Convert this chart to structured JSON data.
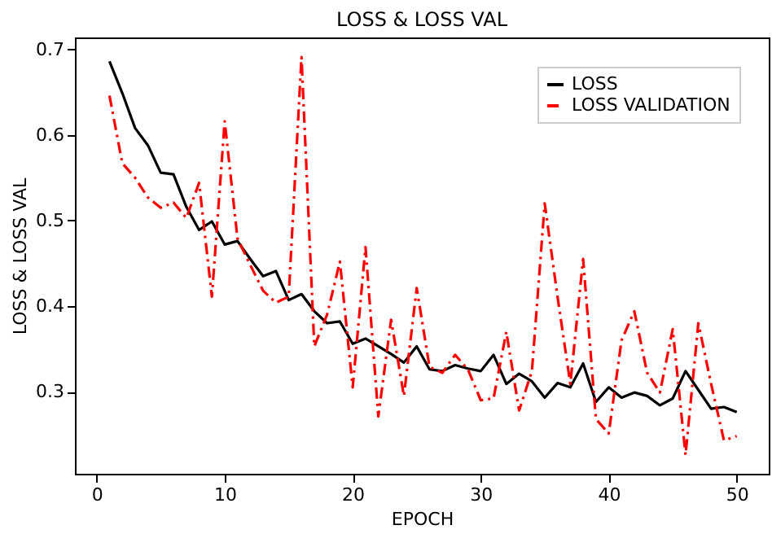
{
  "chart_data": {
    "type": "line",
    "title": "LOSS & LOSS VAL",
    "xlabel": "EPOCH",
    "ylabel": "LOSS & LOSS VAL",
    "x": [
      1,
      2,
      3,
      4,
      5,
      6,
      7,
      8,
      9,
      10,
      11,
      12,
      13,
      14,
      15,
      16,
      17,
      18,
      19,
      20,
      21,
      22,
      23,
      24,
      25,
      26,
      27,
      28,
      29,
      30,
      31,
      32,
      33,
      34,
      35,
      36,
      37,
      38,
      39,
      40,
      41,
      42,
      43,
      44,
      45,
      46,
      47,
      48,
      49,
      50
    ],
    "series": [
      {
        "name": "LOSS",
        "color": "#000000",
        "line_style": "solid",
        "values": [
          0.686,
          0.649,
          0.608,
          0.588,
          0.556,
          0.554,
          0.516,
          0.489,
          0.499,
          0.472,
          0.476,
          0.455,
          0.435,
          0.441,
          0.407,
          0.414,
          0.394,
          0.38,
          0.382,
          0.356,
          0.362,
          0.353,
          0.344,
          0.334,
          0.353,
          0.326,
          0.324,
          0.331,
          0.327,
          0.324,
          0.343,
          0.309,
          0.321,
          0.312,
          0.293,
          0.31,
          0.305,
          0.333,
          0.288,
          0.305,
          0.293,
          0.299,
          0.295,
          0.284,
          0.292,
          0.324,
          0.302,
          0.28,
          0.282,
          0.276
        ]
      },
      {
        "name": "LOSS VALIDATION",
        "color": "#ff0000",
        "line_style": "dashed",
        "values": [
          0.646,
          0.567,
          0.55,
          0.527,
          0.515,
          0.521,
          0.503,
          0.544,
          0.411,
          0.616,
          0.479,
          0.448,
          0.418,
          0.404,
          0.411,
          0.691,
          0.353,
          0.39,
          0.452,
          0.305,
          0.469,
          0.271,
          0.384,
          0.295,
          0.421,
          0.329,
          0.322,
          0.343,
          0.326,
          0.29,
          0.292,
          0.37,
          0.278,
          0.324,
          0.52,
          0.411,
          0.309,
          0.455,
          0.268,
          0.251,
          0.36,
          0.394,
          0.322,
          0.299,
          0.373,
          0.226,
          0.38,
          0.309,
          0.243,
          0.248
        ]
      }
    ],
    "xlim": [
      -1.7,
      52.5
    ],
    "xticks": [
      0,
      10,
      20,
      30,
      40,
      50
    ],
    "ylim": [
      0.204,
      0.714
    ],
    "yticks": [
      0.3,
      0.4,
      0.5,
      0.6,
      0.7
    ],
    "legend": "top right"
  }
}
